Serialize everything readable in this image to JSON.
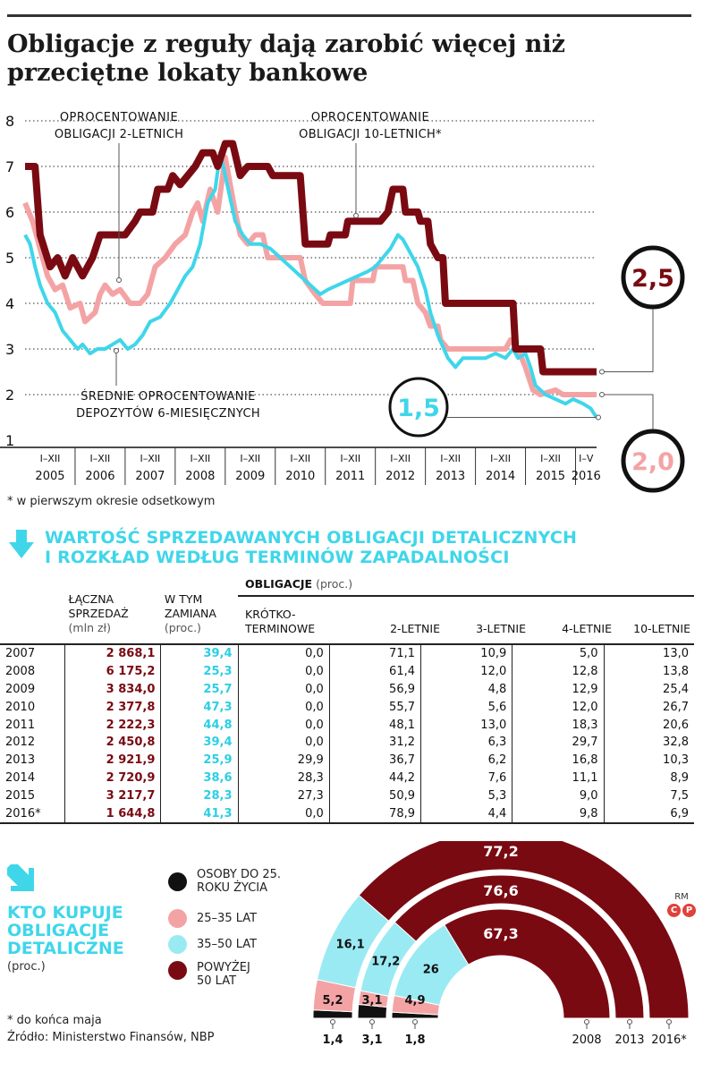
{
  "title": "Obligacje z reguły dają zarobić więcej niż przeciętne lokaty bankowe",
  "chart_data": [
    {
      "type": "line",
      "x": [
        "I-XII 2005",
        "I-XII 2006",
        "I-XII 2007",
        "I-XII 2008",
        "I-XII 2009",
        "I-XII 2010",
        "I-XII 2011",
        "I-XII 2012",
        "I-XII 2013",
        "I-XII 2014",
        "I-XII 2015",
        "I-V 2016"
      ],
      "x_ticks_top": [
        "I–XII",
        "I–XII",
        "I–XII",
        "I–XII",
        "I–XII",
        "I–XII",
        "I–XII",
        "I–XII",
        "I–XII",
        "I–XII",
        "I–XII",
        "I–V"
      ],
      "x_ticks_bottom": [
        "2005",
        "2006",
        "2007",
        "2008",
        "2009",
        "2010",
        "2011",
        "2012",
        "2013",
        "2014",
        "2015",
        "2016"
      ],
      "y_ticks": [
        "1",
        "2",
        "3",
        "4",
        "5",
        "6",
        "7",
        "8"
      ],
      "ylim": [
        1,
        8
      ],
      "xlim": [
        2005,
        2016.42
      ],
      "grid": "dotted horizontal",
      "series": [
        {
          "name": "OPROCENTOWANIE OBLIGACJI 10-LETNICH*",
          "color": "#7a0a12",
          "points": [
            [
              2005.0,
              7.0
            ],
            [
              2005.2,
              7.0
            ],
            [
              2005.3,
              5.5
            ],
            [
              2005.5,
              4.8
            ],
            [
              2005.65,
              5.0
            ],
            [
              2005.8,
              4.6
            ],
            [
              2005.95,
              5.0
            ],
            [
              2006.15,
              4.6
            ],
            [
              2006.35,
              5.0
            ],
            [
              2006.5,
              5.5
            ],
            [
              2007.0,
              5.5
            ],
            [
              2007.2,
              5.8
            ],
            [
              2007.3,
              6.0
            ],
            [
              2007.55,
              6.0
            ],
            [
              2007.65,
              6.5
            ],
            [
              2007.85,
              6.5
            ],
            [
              2007.95,
              6.8
            ],
            [
              2008.1,
              6.6
            ],
            [
              2008.25,
              6.8
            ],
            [
              2008.4,
              7.0
            ],
            [
              2008.55,
              7.3
            ],
            [
              2008.75,
              7.3
            ],
            [
              2008.85,
              7.0
            ],
            [
              2009.0,
              7.5
            ],
            [
              2009.15,
              7.5
            ],
            [
              2009.3,
              6.8
            ],
            [
              2009.45,
              7.0
            ],
            [
              2009.85,
              7.0
            ],
            [
              2009.95,
              6.8
            ],
            [
              2010.5,
              6.8
            ],
            [
              2010.6,
              5.3
            ],
            [
              2011.05,
              5.3
            ],
            [
              2011.1,
              5.5
            ],
            [
              2011.4,
              5.5
            ],
            [
              2011.45,
              5.8
            ],
            [
              2012.1,
              5.8
            ],
            [
              2012.25,
              6.0
            ],
            [
              2012.35,
              6.5
            ],
            [
              2012.55,
              6.5
            ],
            [
              2012.6,
              6.0
            ],
            [
              2012.85,
              6.0
            ],
            [
              2012.9,
              5.8
            ],
            [
              2013.05,
              5.8
            ],
            [
              2013.1,
              5.3
            ],
            [
              2013.25,
              5.0
            ],
            [
              2013.35,
              5.0
            ],
            [
              2013.4,
              4.0
            ],
            [
              2014.75,
              4.0
            ],
            [
              2014.8,
              3.0
            ],
            [
              2015.3,
              3.0
            ],
            [
              2015.35,
              2.5
            ],
            [
              2016.42,
              2.5
            ]
          ]
        },
        {
          "name": "OPROCENTOWANIE OBLIGACJI 2-LETNICH",
          "color": "#f4a3a5",
          "points": [
            [
              2005.0,
              6.2
            ],
            [
              2005.15,
              5.8
            ],
            [
              2005.3,
              5.2
            ],
            [
              2005.45,
              4.6
            ],
            [
              2005.6,
              4.3
            ],
            [
              2005.75,
              4.4
            ],
            [
              2005.9,
              3.9
            ],
            [
              2006.1,
              4.0
            ],
            [
              2006.2,
              3.6
            ],
            [
              2006.4,
              3.8
            ],
            [
              2006.5,
              4.2
            ],
            [
              2006.6,
              4.4
            ],
            [
              2006.75,
              4.2
            ],
            [
              2006.9,
              4.3
            ],
            [
              2007.1,
              4.0
            ],
            [
              2007.3,
              4.0
            ],
            [
              2007.45,
              4.2
            ],
            [
              2007.6,
              4.8
            ],
            [
              2007.8,
              5.0
            ],
            [
              2008.0,
              5.3
            ],
            [
              2008.2,
              5.5
            ],
            [
              2008.35,
              6.0
            ],
            [
              2008.45,
              6.2
            ],
            [
              2008.55,
              5.8
            ],
            [
              2008.7,
              6.5
            ],
            [
              2008.85,
              6.0
            ],
            [
              2009.0,
              7.2
            ],
            [
              2009.1,
              6.6
            ],
            [
              2009.2,
              6.0
            ],
            [
              2009.3,
              5.5
            ],
            [
              2009.45,
              5.3
            ],
            [
              2009.6,
              5.5
            ],
            [
              2009.75,
              5.5
            ],
            [
              2009.85,
              5.0
            ],
            [
              2010.5,
              5.0
            ],
            [
              2010.6,
              4.5
            ],
            [
              2010.8,
              4.2
            ],
            [
              2010.95,
              4.0
            ],
            [
              2011.5,
              4.0
            ],
            [
              2011.55,
              4.5
            ],
            [
              2011.95,
              4.5
            ],
            [
              2012.0,
              4.8
            ],
            [
              2012.55,
              4.8
            ],
            [
              2012.6,
              4.5
            ],
            [
              2012.75,
              4.5
            ],
            [
              2012.85,
              4.0
            ],
            [
              2013.0,
              3.8
            ],
            [
              2013.1,
              3.5
            ],
            [
              2013.25,
              3.5
            ],
            [
              2013.3,
              3.2
            ],
            [
              2013.45,
              3.0
            ],
            [
              2014.2,
              3.0
            ],
            [
              2014.4,
              3.0
            ],
            [
              2014.6,
              3.0
            ],
            [
              2014.7,
              3.2
            ],
            [
              2014.85,
              3.0
            ],
            [
              2015.0,
              2.6
            ],
            [
              2015.15,
              2.1
            ],
            [
              2015.3,
              2.0
            ],
            [
              2015.6,
              2.1
            ],
            [
              2015.75,
              2.0
            ],
            [
              2016.42,
              2.0
            ]
          ]
        },
        {
          "name": "ŚREDNIE OPROCENTOWANIE DEPOZYTÓW 6-MIESIĘCZNYCH",
          "color": "#3fd6ea",
          "points": [
            [
              2005.0,
              5.5
            ],
            [
              2005.1,
              5.3
            ],
            [
              2005.2,
              4.8
            ],
            [
              2005.3,
              4.4
            ],
            [
              2005.45,
              4.0
            ],
            [
              2005.6,
              3.8
            ],
            [
              2005.75,
              3.4
            ],
            [
              2005.9,
              3.2
            ],
            [
              2006.05,
              3.0
            ],
            [
              2006.15,
              3.1
            ],
            [
              2006.3,
              2.9
            ],
            [
              2006.45,
              3.0
            ],
            [
              2006.6,
              3.0
            ],
            [
              2006.75,
              3.1
            ],
            [
              2006.9,
              3.2
            ],
            [
              2007.05,
              3.0
            ],
            [
              2007.2,
              3.1
            ],
            [
              2007.35,
              3.3
            ],
            [
              2007.5,
              3.6
            ],
            [
              2007.7,
              3.7
            ],
            [
              2007.9,
              4.0
            ],
            [
              2008.05,
              4.3
            ],
            [
              2008.2,
              4.6
            ],
            [
              2008.35,
              4.8
            ],
            [
              2008.5,
              5.3
            ],
            [
              2008.65,
              6.2
            ],
            [
              2008.8,
              6.5
            ],
            [
              2008.9,
              7.3
            ],
            [
              2009.0,
              6.8
            ],
            [
              2009.1,
              6.3
            ],
            [
              2009.2,
              5.8
            ],
            [
              2009.35,
              5.5
            ],
            [
              2009.5,
              5.3
            ],
            [
              2009.7,
              5.3
            ],
            [
              2009.9,
              5.2
            ],
            [
              2010.1,
              5.0
            ],
            [
              2010.3,
              4.8
            ],
            [
              2010.5,
              4.6
            ],
            [
              2010.7,
              4.4
            ],
            [
              2010.9,
              4.2
            ],
            [
              2011.05,
              4.3
            ],
            [
              2011.25,
              4.4
            ],
            [
              2011.45,
              4.5
            ],
            [
              2011.65,
              4.6
            ],
            [
              2011.85,
              4.7
            ],
            [
              2012.0,
              4.8
            ],
            [
              2012.15,
              5.0
            ],
            [
              2012.3,
              5.2
            ],
            [
              2012.45,
              5.5
            ],
            [
              2012.55,
              5.4
            ],
            [
              2012.65,
              5.2
            ],
            [
              2012.75,
              5.0
            ],
            [
              2012.85,
              4.8
            ],
            [
              2013.0,
              4.3
            ],
            [
              2013.1,
              3.8
            ],
            [
              2013.25,
              3.3
            ],
            [
              2013.45,
              2.8
            ],
            [
              2013.6,
              2.6
            ],
            [
              2013.75,
              2.8
            ],
            [
              2014.0,
              2.8
            ],
            [
              2014.2,
              2.8
            ],
            [
              2014.4,
              2.9
            ],
            [
              2014.6,
              2.8
            ],
            [
              2014.75,
              3.0
            ],
            [
              2014.85,
              2.8
            ],
            [
              2015.0,
              2.9
            ],
            [
              2015.1,
              2.6
            ],
            [
              2015.2,
              2.2
            ],
            [
              2015.4,
              2.0
            ],
            [
              2015.6,
              1.9
            ],
            [
              2015.8,
              1.8
            ],
            [
              2015.95,
              1.9
            ],
            [
              2016.15,
              1.8
            ],
            [
              2016.3,
              1.7
            ],
            [
              2016.42,
              1.5
            ]
          ]
        }
      ],
      "end_labels": {
        "s10": "2,5",
        "s2": "2,0",
        "dep": "1,5"
      },
      "labels": {
        "two_line1": "OPROCENTOWANIE",
        "two_line2": "OBLIGACJI 2-LETNICH",
        "ten_line1": "OPROCENTOWANIE",
        "ten_line2": "OBLIGACJI 10-LETNICH*",
        "dep_line1": "ŚREDNIE OPROCENTOWANIE",
        "dep_line2": "DEPOZYTÓW 6-MIESIĘCZNYCH"
      }
    },
    {
      "type": "table",
      "title_line1": "WARTOŚĆ SPRZEDAWANYCH OBLIGACJI DETALICZNYCH",
      "title_line2": "I ROZKŁAD WEDŁUG TERMINÓW ZAPADALNOŚCI",
      "headers": {
        "sales_l1": "ŁĄCZNA",
        "sales_l2": "SPRZEDAŻ",
        "sales_unit": "(mln zł)",
        "swap_l1": "W TYM",
        "swap_l2": "ZAMIANA",
        "swap_unit": "(proc.)",
        "group": "OBLIGACJE",
        "group_unit": "(proc.)",
        "short_l1": "KRÓTKO-",
        "short_l2": "TERMINOWE",
        "y2": "2-LETNIE",
        "y3": "3-LETNIE",
        "y4": "4-LETNIE",
        "y10": "10-LETNIE"
      },
      "rows": [
        [
          "2007",
          "2 868,1",
          "39,4",
          "0,0",
          "71,1",
          "10,9",
          "5,0",
          "13,0"
        ],
        [
          "2008",
          "6 175,2",
          "25,3",
          "0,0",
          "61,4",
          "12,0",
          "12,8",
          "13,8"
        ],
        [
          "2009",
          "3 834,0",
          "25,7",
          "0,0",
          "56,9",
          "4,8",
          "12,9",
          "25,4"
        ],
        [
          "2010",
          "2 377,8",
          "47,3",
          "0,0",
          "55,7",
          "5,6",
          "12,0",
          "26,7"
        ],
        [
          "2011",
          "2 222,3",
          "44,8",
          "0,0",
          "48,1",
          "13,0",
          "18,3",
          "20,6"
        ],
        [
          "2012",
          "2 450,8",
          "39,4",
          "0,0",
          "31,2",
          "6,3",
          "29,7",
          "32,8"
        ],
        [
          "2013",
          "2 921,9",
          "25,9",
          "29,9",
          "36,7",
          "6,2",
          "16,8",
          "10,3"
        ],
        [
          "2014",
          "2 720,9",
          "38,6",
          "28,3",
          "44,2",
          "7,6",
          "11,1",
          "8,9"
        ],
        [
          "2015",
          "3 217,7",
          "28,3",
          "27,3",
          "50,9",
          "5,3",
          "9,0",
          "7,5"
        ],
        [
          "2016*",
          "1 644,8",
          "41,3",
          "0,0",
          "78,9",
          "4,4",
          "9,8",
          "6,9"
        ]
      ]
    },
    {
      "type": "pie",
      "title_line1": "KTO KUPUJE",
      "title_line2": "OBLIGACJE",
      "title_line3": "DETALICZNE",
      "subtitle": "(proc.)",
      "legend": [
        {
          "label_l1": "OSOBY DO 25.",
          "label_l2": "ROKU ŻYCIA",
          "color": "#111111"
        },
        {
          "label_l1": "25–35 LAT",
          "label_l2": "",
          "color": "#f4a3a5"
        },
        {
          "label_l1": "35–50 LAT",
          "label_l2": "",
          "color": "#9aeaf4"
        },
        {
          "label_l1": "POWYŻEJ",
          "label_l2": "50 LAT",
          "color": "#7a0a12"
        }
      ],
      "rings": [
        {
          "year": "2008",
          "values": [
            1.8,
            4.9,
            26,
            67.3
          ],
          "labels": [
            "1,8",
            "4,9",
            "26",
            "67,3"
          ]
        },
        {
          "year": "2013",
          "values": [
            3.1,
            3.1,
            17.2,
            76.6
          ],
          "labels": [
            "3,1",
            "3,1",
            "17,2",
            "76,6"
          ]
        },
        {
          "year": "2016*",
          "values": [
            1.4,
            5.2,
            16.1,
            77.2
          ],
          "labels": [
            "1,4",
            "5,2",
            "16,1",
            "77,2"
          ]
        }
      ]
    }
  ],
  "footnote_chart": "* w pierwszym okresie odsetkowym",
  "footnote_bottom": "* do końca maja",
  "source": "Źródło: Ministerstwo Finansów, NBP",
  "credit_initials": "RM",
  "credit_marks": [
    "C",
    "P"
  ]
}
